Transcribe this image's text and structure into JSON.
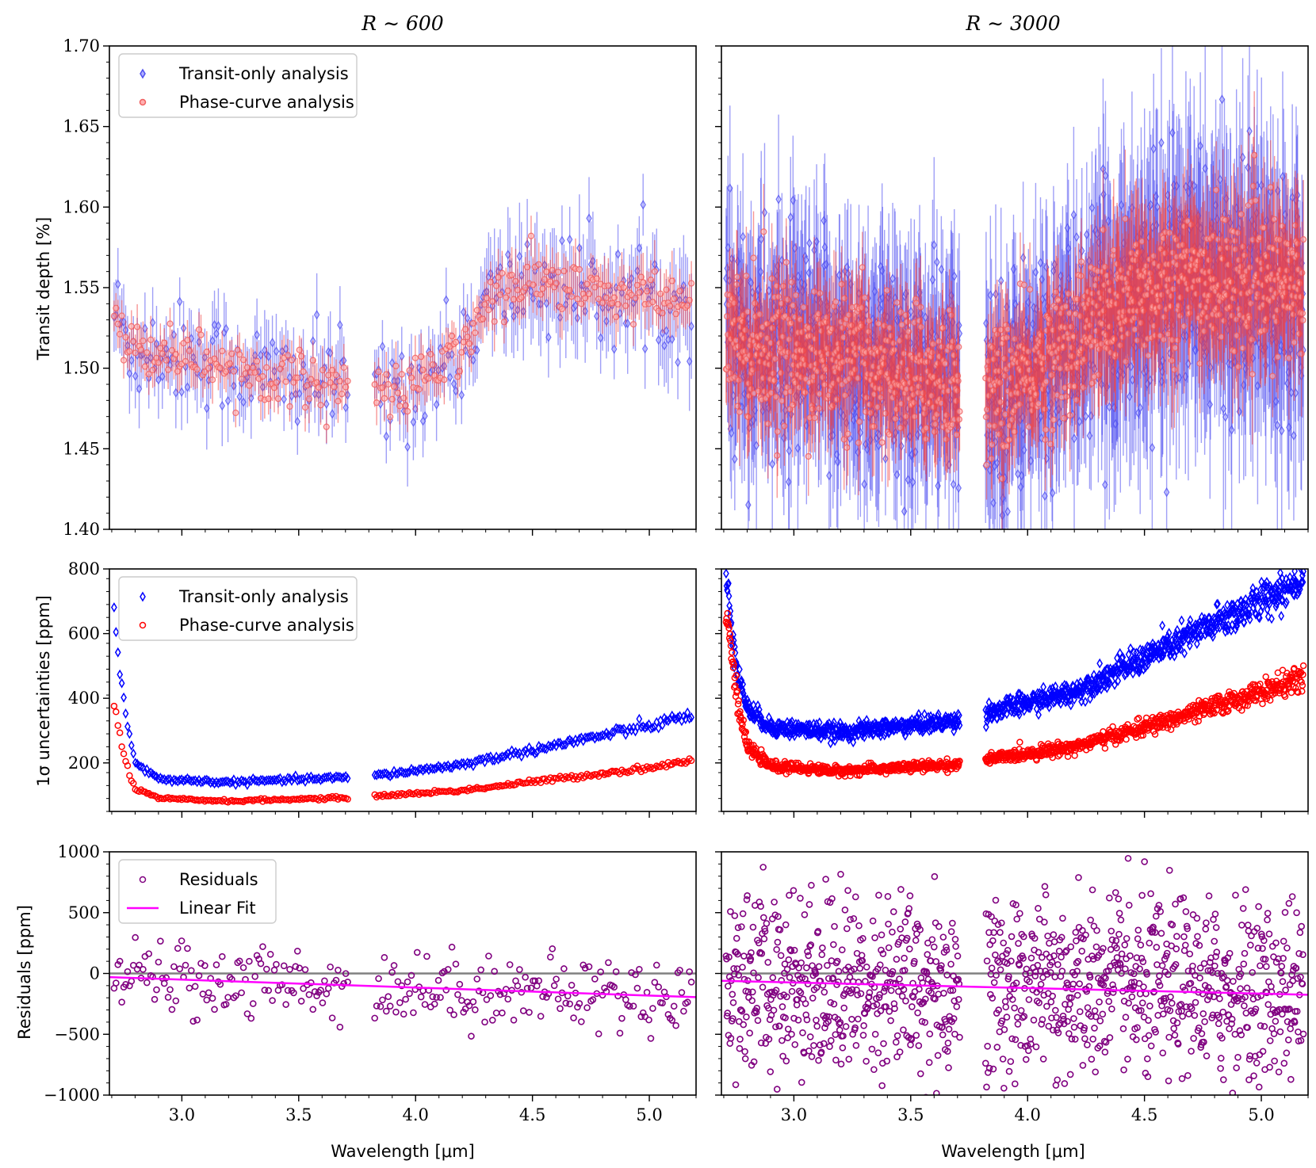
{
  "chart_data": {
    "type": "scatter",
    "columns": [
      {
        "title": "R ∼ 600"
      },
      {
        "title": "R ∼ 3000"
      }
    ],
    "x_axis": {
      "label": "Wavelength [μm]",
      "range": [
        2.69,
        5.2
      ],
      "ticks": [
        "3.0",
        "3.5",
        "4.0",
        "4.5",
        "5.0"
      ],
      "tick_values": [
        3.0,
        3.5,
        4.0,
        4.5,
        5.0
      ]
    },
    "rows": [
      {
        "ylabel": "Transit depth [%]",
        "ylim": [
          1.4,
          1.7
        ],
        "ticks": [
          "1.40",
          "1.45",
          "1.50",
          "1.55",
          "1.60",
          "1.65",
          "1.70"
        ],
        "tick_values": [
          1.4,
          1.45,
          1.5,
          1.55,
          1.6,
          1.65,
          1.7
        ],
        "legend": [
          {
            "label": "Transit-only analysis",
            "marker": "diamond",
            "color": "#5050f0"
          },
          {
            "label": "Phase-curve analysis",
            "marker": "circle",
            "color": "#f06060"
          }
        ]
      },
      {
        "ylabel": "1σ uncertainties [ppm]",
        "ylim": [
          50,
          800
        ],
        "ticks": [
          "200",
          "400",
          "600",
          "800"
        ],
        "tick_values": [
          200,
          400,
          600,
          800
        ],
        "legend": [
          {
            "label": "Transit-only analysis",
            "marker": "diamond",
            "color": "#0000ff"
          },
          {
            "label": "Phase-curve analysis",
            "marker": "circle",
            "color": "#ff0000"
          }
        ]
      },
      {
        "ylabel": "Residuals [ppm]",
        "ylim": [
          -1000,
          1000
        ],
        "ticks": [
          "−1000",
          "−500",
          "0",
          "500",
          "1000"
        ],
        "tick_values": [
          -1000,
          -500,
          0,
          500,
          1000
        ],
        "legend": [
          {
            "label": "Residuals",
            "marker": "circle",
            "color": "#800080"
          },
          {
            "label": "Linear Fit",
            "marker": "line",
            "color": "#ff00ff"
          }
        ]
      }
    ],
    "gap_um": [
      3.71,
      3.82
    ],
    "series": {
      "transit_depth_R600": {
        "description_trend": [
          [
            2.7,
            1.54
          ],
          [
            2.78,
            1.512
          ],
          [
            3.0,
            1.51
          ],
          [
            3.3,
            1.498
          ],
          [
            3.7,
            1.49
          ],
          [
            3.82,
            1.482
          ],
          [
            4.0,
            1.49
          ],
          [
            4.2,
            1.51
          ],
          [
            4.3,
            1.54
          ],
          [
            4.5,
            1.555
          ],
          [
            4.8,
            1.545
          ],
          [
            5.2,
            1.54
          ]
        ],
        "scatter_transit": 0.022,
        "scatter_phase": 0.012
      },
      "transit_depth_R3000": {
        "description_trend": [
          [
            2.7,
            1.53
          ],
          [
            2.8,
            1.515
          ],
          [
            3.2,
            1.505
          ],
          [
            3.7,
            1.492
          ],
          [
            3.82,
            1.482
          ],
          [
            4.0,
            1.495
          ],
          [
            4.3,
            1.53
          ],
          [
            4.6,
            1.555
          ],
          [
            5.2,
            1.55
          ]
        ],
        "scatter_transit": 0.05,
        "scatter_phase": 0.03
      },
      "uncertainty_R600_transit": [
        [
          2.71,
          680
        ],
        [
          2.73,
          500
        ],
        [
          2.76,
          350
        ],
        [
          2.8,
          200
        ],
        [
          2.9,
          150
        ],
        [
          3.2,
          140
        ],
        [
          3.7,
          155
        ],
        [
          3.82,
          160
        ],
        [
          4.2,
          195
        ],
        [
          4.6,
          255
        ],
        [
          5.0,
          315
        ],
        [
          5.17,
          345
        ]
      ],
      "uncertainty_R600_phase": [
        [
          2.71,
          385
        ],
        [
          2.73,
          300
        ],
        [
          2.76,
          200
        ],
        [
          2.8,
          120
        ],
        [
          2.9,
          90
        ],
        [
          3.2,
          82
        ],
        [
          3.7,
          92
        ],
        [
          3.82,
          97
        ],
        [
          4.2,
          115
        ],
        [
          4.6,
          150
        ],
        [
          5.0,
          185
        ],
        [
          5.17,
          205
        ]
      ],
      "uncertainty_R3000_transit": [
        [
          2.71,
          770
        ],
        [
          2.73,
          650
        ],
        [
          2.76,
          480
        ],
        [
          2.8,
          370
        ],
        [
          2.9,
          310
        ],
        [
          3.2,
          295
        ],
        [
          3.7,
          330
        ],
        [
          3.82,
          355
        ],
        [
          4.2,
          420
        ],
        [
          4.6,
          560
        ],
        [
          5.0,
          700
        ],
        [
          5.17,
          770
        ]
      ],
      "uncertainty_R3000_phase": [
        [
          2.71,
          700
        ],
        [
          2.73,
          560
        ],
        [
          2.76,
          380
        ],
        [
          2.8,
          250
        ],
        [
          2.9,
          190
        ],
        [
          3.2,
          175
        ],
        [
          3.7,
          195
        ],
        [
          3.82,
          210
        ],
        [
          4.2,
          250
        ],
        [
          4.6,
          330
        ],
        [
          5.0,
          420
        ],
        [
          5.17,
          460
        ]
      ],
      "residual_fit_R600": {
        "x0": 2.69,
        "y0": -30,
        "x1": 5.2,
        "y1": -195
      },
      "residual_fit_R3000": {
        "x0": 2.69,
        "y0": -60,
        "x1": 5.2,
        "y1": -175
      },
      "residual_scatter_R600": 150,
      "residual_scatter_R3000": 380
    }
  }
}
